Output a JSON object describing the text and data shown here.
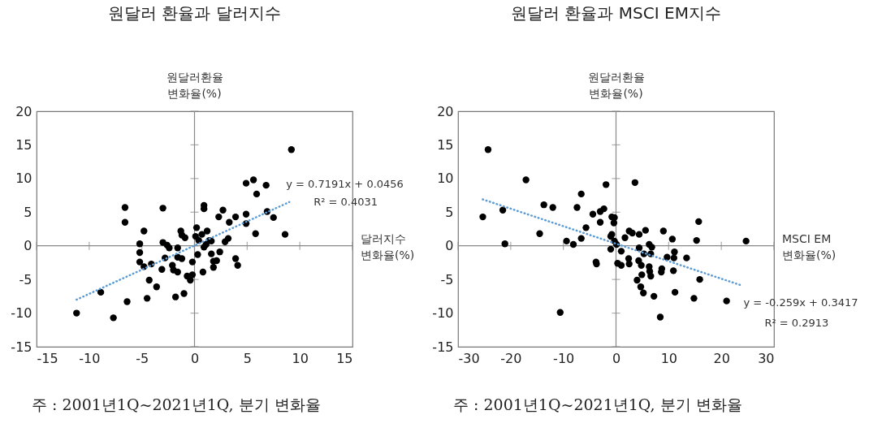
{
  "chart_data": [
    {
      "type": "scatter",
      "title": "원달러 환율과 달러지수",
      "xlabel": "달러지수\n변화율(%)",
      "ylabel": "원달러환율\n변화율(%)",
      "xlim": [
        -15,
        15
      ],
      "xticks": [
        -15,
        -10,
        -5,
        0,
        5,
        10,
        15
      ],
      "ylim": [
        -15,
        20
      ],
      "yticks": [
        -15,
        -10,
        -5,
        0,
        5,
        10,
        15,
        20
      ],
      "series": [
        {
          "type": "scatter",
          "marker": "circle",
          "color": "#000000",
          "x": [
            9.2,
            5.6,
            4.9,
            6.8,
            5.9,
            0.9,
            0.9,
            2.7,
            -6.6,
            -3.0,
            -6.6,
            4.9,
            6.9,
            7.5,
            3.9,
            2.3,
            3.3,
            4.9,
            0.2,
            -4.8,
            -1.3,
            1.2,
            0.7,
            -1.2,
            -0.9,
            0.1,
            5.8,
            8.6,
            0.4,
            1.4,
            1.6,
            1.1,
            3.2,
            2.9,
            -3.0,
            -2.6,
            -2.4,
            -1.6,
            -5.2,
            -5.2,
            0.9,
            0.3,
            1.6,
            2.4,
            -2.8,
            -1.6,
            -1.2,
            -0.2,
            1.8,
            2.1,
            1.8,
            3.9,
            4.1,
            -5.2,
            -4.1,
            -4.8,
            -3.1,
            -2.1,
            -2.0,
            -1.6,
            0.8,
            -0.2,
            -0.7,
            -0.4,
            -4.3,
            -3.6,
            -8.9,
            -4.5,
            -1.8,
            -1.0,
            -6.4,
            -11.2,
            -7.7
          ],
          "values": [
            14.3,
            9.8,
            9.3,
            9.0,
            7.7,
            6.0,
            5.5,
            5.3,
            5.7,
            5.6,
            3.5,
            4.7,
            5.1,
            4.2,
            4.3,
            4.3,
            3.5,
            3.3,
            2.7,
            2.2,
            2.2,
            2.2,
            1.7,
            1.6,
            1.2,
            1.4,
            1.8,
            1.7,
            0.8,
            0.8,
            0.7,
            0.2,
            1.1,
            0.6,
            0.5,
            0.1,
            -0.3,
            -0.3,
            0.3,
            -1.0,
            -0.2,
            -1.3,
            -1.2,
            -0.9,
            -1.8,
            -1.7,
            -1.9,
            -2.4,
            -2.3,
            -2.2,
            -3.2,
            -1.9,
            -2.9,
            -2.4,
            -2.7,
            -3.1,
            -3.5,
            -2.9,
            -3.6,
            -3.9,
            -3.9,
            -4.3,
            -4.5,
            -5.1,
            -5.1,
            -6.1,
            -6.9,
            -7.8,
            -7.6,
            -7.1,
            -8.3,
            -10.0,
            -10.7
          ]
        },
        {
          "type": "line",
          "color": "#5b9bd5",
          "line_style": "dotted",
          "x": [
            -11.2,
            9.0
          ],
          "values": [
            -8.0,
            6.5
          ]
        }
      ],
      "annotations": [
        "y = 0.7191x + 0.0456",
        "R² = 0.4031",
        "주  : 2001년1Q~2021년1Q, 분기 변화율"
      ]
    },
    {
      "type": "scatter",
      "title": "원달러 환율과 MSCI EM지수",
      "xlabel": "MSCI EM\n변화율(%)",
      "ylabel": "원달러환율\n변화율(%)",
      "xlim": [
        -30,
        30
      ],
      "xticks": [
        -30,
        -20,
        -10,
        0,
        10,
        20,
        30
      ],
      "ylim": [
        -15,
        20
      ],
      "yticks": [
        -15,
        -10,
        -5,
        0,
        5,
        10,
        15,
        20
      ],
      "series": [
        {
          "type": "scatter",
          "marker": "circle",
          "color": "#000000",
          "x": [
            -24.3,
            -17.1,
            -1.9,
            3.6,
            -6.6,
            -13.7,
            -12.0,
            -7.4,
            -21.5,
            -25.3,
            -4.4,
            -3.0,
            -2.3,
            -0.8,
            -0.3,
            -0.4,
            -3.0,
            15.7,
            -5.7,
            -14.5,
            -6.6,
            -0.8,
            -1.0,
            2.5,
            3.1,
            5.6,
            4.4,
            9.0,
            1.7,
            10.7,
            15.3,
            24.7,
            -21.1,
            -9.4,
            -8.1,
            -0.3,
            0.1,
            -1.0,
            1.0,
            4.4,
            6.3,
            6.8,
            5.3,
            6.6,
            9.7,
            11.1,
            11.0,
            13.4,
            2.4,
            2.5,
            4.3,
            4.8,
            0.3,
            1.0,
            -3.8,
            -3.7,
            6.3,
            6.4,
            6.6,
            8.7,
            8.6,
            10.9,
            4.9,
            4.0,
            15.9,
            4.7,
            5.2,
            7.2,
            11.2,
            14.8,
            21.0,
            -10.6,
            8.4
          ],
          "values": [
            14.3,
            9.8,
            9.1,
            9.4,
            7.7,
            6.1,
            5.7,
            5.7,
            5.3,
            4.3,
            4.7,
            5.1,
            5.5,
            4.3,
            4.2,
            3.4,
            3.5,
            3.6,
            2.7,
            1.8,
            1.1,
            1.7,
            1.4,
            2.2,
            1.9,
            2.3,
            1.7,
            2.2,
            1.2,
            1.0,
            0.8,
            0.7,
            0.3,
            0.7,
            0.2,
            0.7,
            0.2,
            -0.5,
            -0.8,
            -0.3,
            0.2,
            -0.2,
            -1.2,
            -1.2,
            -1.7,
            -0.9,
            -1.8,
            -1.8,
            -1.9,
            -2.7,
            -2.2,
            -2.9,
            -2.6,
            -2.9,
            -2.4,
            -2.7,
            -3.1,
            -3.8,
            -4.5,
            -3.4,
            -3.9,
            -3.7,
            -4.3,
            -5.1,
            -5.0,
            -6.1,
            -7.0,
            -7.5,
            -6.9,
            -7.8,
            -8.2,
            -9.9,
            -10.6
          ]
        },
        {
          "type": "line",
          "color": "#5b9bd5",
          "line_style": "dotted",
          "x": [
            -25.3,
            23.9
          ],
          "values": [
            6.9,
            -5.9
          ]
        }
      ],
      "annotations": [
        "y = -0.259x + 0.3417",
        "R² = 0.2913",
        "주  : 2001년1Q~2021년1Q, 분기 변화율"
      ]
    }
  ]
}
